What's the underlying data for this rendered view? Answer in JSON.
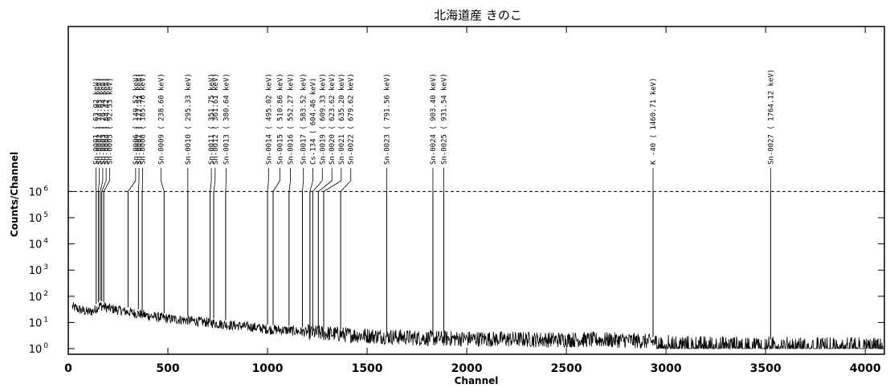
{
  "chart_data": {
    "type": "line",
    "title": "北海道産 きのこ",
    "xlabel": "Channel",
    "ylabel": "Counts/Channel",
    "xlim": [
      0,
      4096
    ],
    "ylim_log10": [
      0,
      6.6
    ],
    "y_scale": "log",
    "x_ticks": [
      "0",
      "500",
      "1000",
      "1500",
      "2000",
      "2500",
      "3000",
      "3500",
      "4000"
    ],
    "x_tick_values": [
      0,
      500,
      1000,
      1500,
      2000,
      2500,
      3000,
      3500,
      4000
    ],
    "y_ticks": [
      {
        "base": "10",
        "exp": "0",
        "value": 1
      },
      {
        "base": "10",
        "exp": "1",
        "value": 10
      },
      {
        "base": "10",
        "exp": "2",
        "value": 100
      },
      {
        "base": "10",
        "exp": "3",
        "value": 1000
      },
      {
        "base": "10",
        "exp": "4",
        "value": 10000
      },
      {
        "base": "10",
        "exp": "5",
        "value": 100000
      },
      {
        "base": "10",
        "exp": "6",
        "value": 1000000
      }
    ],
    "reference_line_y": 1000000,
    "spectrum_envelope": {
      "channels": [
        20,
        60,
        100,
        130,
        160,
        200,
        300,
        400,
        500,
        600,
        700,
        800,
        900,
        1000,
        1100,
        1200,
        1300,
        1400,
        1500,
        1600,
        1700,
        1800,
        2000,
        2200,
        2400,
        2600,
        2800,
        2950,
        3100,
        3300,
        3500,
        3700,
        3900,
        4080
      ],
      "counts": [
        40,
        30,
        25,
        28,
        45,
        35,
        25,
        18,
        14,
        12,
        10,
        8,
        7,
        5.5,
        5,
        4.2,
        3.8,
        3.4,
        3.1,
        2.9,
        2.7,
        2.5,
        2.4,
        2.3,
        2.2,
        2.2,
        2.1,
        1.8,
        1.6,
        1.5,
        1.5,
        1.4,
        1.4,
        1.3
      ]
    },
    "peaks": [
      {
        "label": "Sn-0001 (  63.02 keV)",
        "channel": 140,
        "anchor": 139
      },
      {
        "label": "Sn-0002 (  74.83 keV)",
        "channel": 151,
        "anchor": 156
      },
      {
        "label": "Sn-0003 (  76.94 keV)",
        "channel": 160,
        "anchor": 173
      },
      {
        "label": "Sn-0004 (  84.42 keV)",
        "channel": 168,
        "anchor": 190
      },
      {
        "label": "Sn-0005 (  92.53 keV)",
        "channel": 178,
        "anchor": 207
      },
      {
        "label": "Sn-0006 ( 149.52 keV)",
        "channel": 300,
        "anchor": 338
      },
      {
        "label": "Sn-0007 ( 177.51 keV)",
        "channel": 352,
        "anchor": 355
      },
      {
        "label": "Sn-0008 ( 185.76 keV)",
        "channel": 371,
        "anchor": 373
      },
      {
        "label": "Sn-0009 ( 238.60 keV)",
        "channel": 481,
        "anchor": 465
      },
      {
        "label": "Sn-0010 ( 295.33 keV)",
        "channel": 600,
        "anchor": 600
      },
      {
        "label": "Sn-0011 ( 351.75 keV)",
        "channel": 712,
        "anchor": 718
      },
      {
        "label": "Sn-0012 ( 361.61 keV)",
        "channel": 730,
        "anchor": 737
      },
      {
        "label": "Sn-0013 ( 380.64 keV)",
        "channel": 790,
        "anchor": 792
      },
      {
        "label": "Sn-0014 ( 495.02 keV)",
        "channel": 1000,
        "anchor": 1005
      },
      {
        "label": "Sn-0015 ( 510.86 keV)",
        "channel": 1028,
        "anchor": 1062
      },
      {
        "label": "Sn-0016 ( 552.27 keV)",
        "channel": 1108,
        "anchor": 1115
      },
      {
        "label": "Sn-0017 ( 583.52 keV)",
        "channel": 1175,
        "anchor": 1180
      },
      {
        "label": "Cs-134 ( 604.46 keV)",
        "channel": 1213,
        "anchor": 1228
      },
      {
        "label": "Sn-0019 ( 609.33 keV)",
        "channel": 1227,
        "anchor": 1275
      },
      {
        "label": "Sn-0020 ( 623.62 keV)",
        "channel": 1255,
        "anchor": 1323
      },
      {
        "label": "Sn-0021 ( 635.20 keV)",
        "channel": 1282,
        "anchor": 1370
      },
      {
        "label": "Sn-0022 ( 679.62 keV)",
        "channel": 1367,
        "anchor": 1418
      },
      {
        "label": "Sn-0023 ( 791.56 keV)",
        "channel": 1598,
        "anchor": 1598
      },
      {
        "label": "Sn-0024 ( 903.40 keV)",
        "channel": 1830,
        "anchor": 1830
      },
      {
        "label": "Sn-0025 ( 931.54 keV)",
        "channel": 1885,
        "anchor": 1885
      },
      {
        "label": "K -40 ( 1460.71 keV)",
        "channel": 2935,
        "anchor": 2935
      },
      {
        "label": "Sn-0027 ( 1764.12 keV)",
        "channel": 3525,
        "anchor": 3525
      }
    ],
    "grid": false,
    "legend": "none"
  }
}
